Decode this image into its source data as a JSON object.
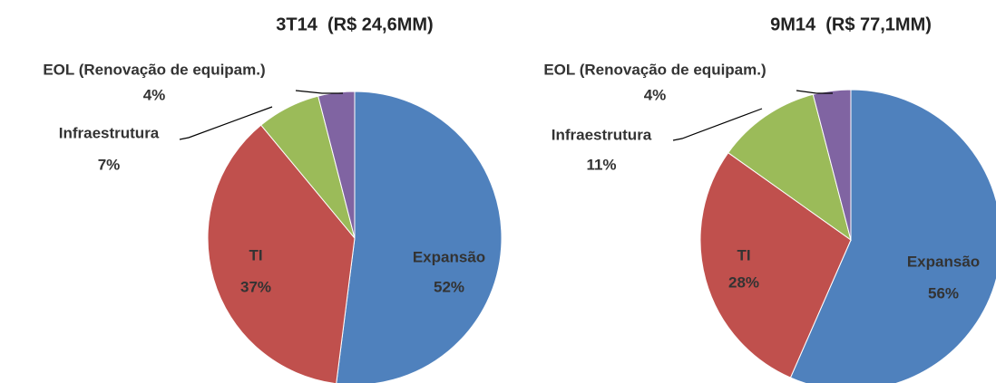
{
  "chart_data": [
    {
      "type": "pie",
      "title": "3T14  (R$ 24,6MM)",
      "categories": [
        "Expansão",
        "TI",
        "Infraestrutura",
        "EOL (Renovação de equipam.)"
      ],
      "values": [
        52,
        37,
        7,
        4
      ],
      "value_labels": [
        "52%",
        "37%",
        "7%",
        "4%"
      ],
      "colors": [
        "#4f81bd",
        "#c0504d",
        "#9bbb59",
        "#8064a2"
      ]
    },
    {
      "type": "pie",
      "title": "9M14  (R$ 77,1MM)",
      "categories": [
        "Expansão",
        "TI",
        "Infraestrutura",
        "EOL (Renovação de equipam.)"
      ],
      "values": [
        56,
        28,
        11,
        4
      ],
      "value_labels": [
        "56%",
        "28%",
        "11%",
        "4%"
      ],
      "colors": [
        "#4f81bd",
        "#c0504d",
        "#9bbb59",
        "#8064a2"
      ]
    }
  ]
}
